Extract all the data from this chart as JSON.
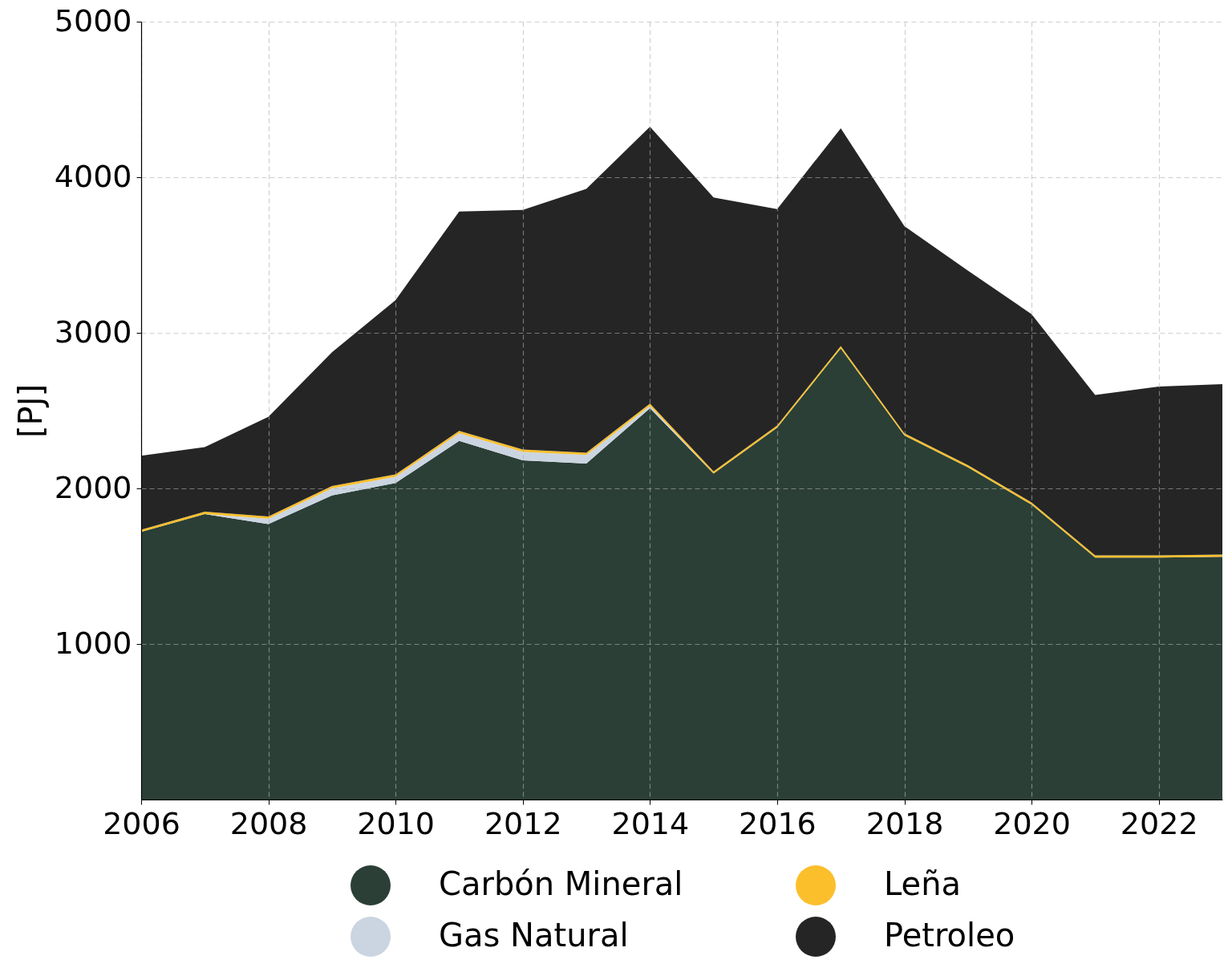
{
  "chart_data": {
    "type": "area",
    "stacked": true,
    "ylabel": "[PJ]",
    "x": [
      2006,
      2007,
      2008,
      2009,
      2010,
      2011,
      2012,
      2013,
      2014,
      2015,
      2016,
      2017,
      2018,
      2019,
      2020,
      2021,
      2022,
      2023
    ],
    "series": [
      {
        "name": "Carbón Mineral",
        "color": "#2b3f36",
        "values": [
          1720,
          1835,
          1770,
          1955,
          2035,
          2305,
          2180,
          2160,
          2515,
          2095,
          2390,
          2900,
          2340,
          2135,
          1895,
          1555,
          1555,
          1560
        ]
      },
      {
        "name": "Gas Natural",
        "color": "#cbd5e1",
        "values": [
          0,
          0,
          35,
          45,
          40,
          50,
          55,
          55,
          15,
          0,
          0,
          0,
          0,
          0,
          0,
          0,
          0,
          0
        ]
      },
      {
        "name": "Leña",
        "color": "#fbbf2c",
        "values": [
          15,
          15,
          15,
          15,
          15,
          15,
          15,
          15,
          15,
          15,
          15,
          15,
          15,
          15,
          15,
          15,
          15,
          15
        ]
      },
      {
        "name": "Petroleo",
        "color": "#252525",
        "values": [
          475,
          415,
          640,
          860,
          1120,
          1410,
          1540,
          1695,
          1780,
          1760,
          1390,
          1400,
          1330,
          1250,
          1210,
          1030,
          1085,
          1095
        ]
      }
    ],
    "xlim": [
      2006,
      2023
    ],
    "xticks": [
      2006,
      2008,
      2010,
      2012,
      2014,
      2016,
      2018,
      2020,
      2022
    ],
    "ylim": [
      0,
      5000
    ],
    "yticks": [
      1000,
      2000,
      3000,
      4000,
      5000
    ],
    "grid": true,
    "legend": "bottom"
  }
}
